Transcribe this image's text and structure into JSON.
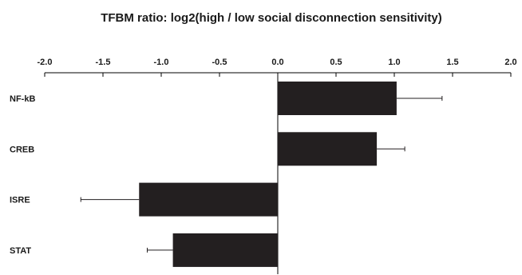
{
  "chart_data": {
    "type": "bar",
    "orientation": "horizontal",
    "title": "TFBM ratio: log2(high / low social disconnection sensitivity)",
    "xlabel": "",
    "ylabel": "",
    "xlim": [
      -2.0,
      2.0
    ],
    "x_ticks": [
      "-2.0",
      "-1.5",
      "-1.0",
      "-0.5",
      "0.0",
      "0.5",
      "1.0",
      "1.5",
      "2.0"
    ],
    "x_axis_position": "top",
    "grid": false,
    "categories": [
      "NF-kB",
      "CREB",
      "ISRE",
      "STAT"
    ],
    "values": [
      1.02,
      0.85,
      -1.19,
      -0.9
    ],
    "error": [
      0.39,
      0.24,
      0.5,
      0.22
    ],
    "bar_color": "#231f20"
  }
}
